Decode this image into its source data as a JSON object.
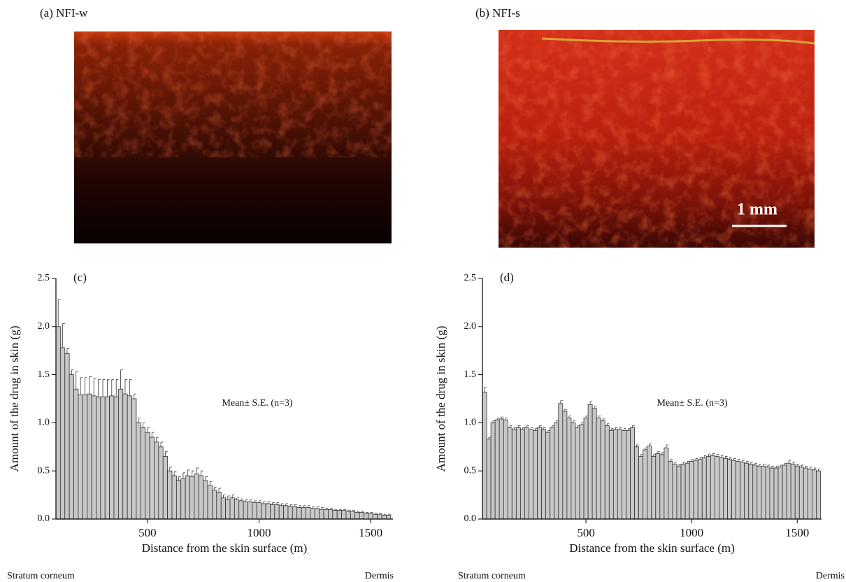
{
  "panels": [
    {
      "label": "(a) NFI-w"
    },
    {
      "label": "(b) NFI-s",
      "scale_bar": "1 mm"
    }
  ],
  "chart_data": [
    {
      "type": "bar",
      "panel_label": "(c)",
      "annotation": "Mean± S.E. (n=3)",
      "y_label": "Amount of the drug  in skin (g)",
      "x_label": "Distance from the skin surface (m)",
      "footer_labels": [
        "Stratum corneum",
        "Dermis"
      ],
      "color": "#c8c8c8",
      "xlim": [
        90,
        1600
      ],
      "xticks": [
        500,
        1000,
        1500
      ],
      "ylim": [
        0,
        2.5
      ],
      "yticks": [
        {
          "value": 0,
          "label": "0.0"
        },
        0.5,
        {
          "value": 1,
          "label": "1.0"
        },
        1.5,
        {
          "value": 2,
          "label": "2.0"
        },
        2.5
      ],
      "x": [
        100,
        120,
        140,
        160,
        180,
        200,
        220,
        240,
        260,
        280,
        300,
        320,
        340,
        360,
        380,
        400,
        420,
        440,
        460,
        480,
        500,
        520,
        540,
        560,
        580,
        600,
        620,
        640,
        660,
        680,
        700,
        720,
        740,
        760,
        780,
        800,
        820,
        840,
        860,
        880,
        900,
        920,
        940,
        960,
        980,
        1000,
        1020,
        1040,
        1060,
        1080,
        1100,
        1120,
        1140,
        1160,
        1180,
        1200,
        1220,
        1240,
        1260,
        1280,
        1300,
        1320,
        1340,
        1360,
        1380,
        1400,
        1420,
        1440,
        1460,
        1480,
        1500,
        1520,
        1540,
        1560,
        1580
      ],
      "values": [
        2.0,
        1.78,
        1.72,
        1.5,
        1.35,
        1.29,
        1.29,
        1.3,
        1.28,
        1.27,
        1.27,
        1.27,
        1.28,
        1.27,
        1.35,
        1.3,
        1.28,
        1.25,
        1.0,
        0.95,
        0.9,
        0.85,
        0.8,
        0.75,
        0.65,
        0.5,
        0.45,
        0.4,
        0.42,
        0.45,
        0.44,
        0.47,
        0.45,
        0.4,
        0.35,
        0.3,
        0.28,
        0.22,
        0.2,
        0.22,
        0.2,
        0.19,
        0.18,
        0.18,
        0.17,
        0.17,
        0.16,
        0.16,
        0.15,
        0.15,
        0.14,
        0.14,
        0.13,
        0.13,
        0.12,
        0.12,
        0.12,
        0.11,
        0.11,
        0.1,
        0.1,
        0.1,
        0.09,
        0.09,
        0.09,
        0.08,
        0.08,
        0.07,
        0.07,
        0.06,
        0.06,
        0.05,
        0.05,
        0.04,
        0.04
      ],
      "errors": [
        0.28,
        0.25,
        0.05,
        0.05,
        0.18,
        0.18,
        0.18,
        0.18,
        0.18,
        0.18,
        0.18,
        0.18,
        0.17,
        0.18,
        0.2,
        0.15,
        0.17,
        0.05,
        0.05,
        0.05,
        0.05,
        0.05,
        0.05,
        0.05,
        0.05,
        0.04,
        0.04,
        0.04,
        0.06,
        0.06,
        0.06,
        0.06,
        0.05,
        0.04,
        0.04,
        0.03,
        0.04,
        0.03,
        0.04,
        0.03,
        0.02,
        0.02,
        0.02,
        0.02,
        0.02,
        0.02,
        0.02,
        0.02,
        0.02,
        0.02,
        0.02,
        0.02,
        0.02,
        0.02,
        0.02,
        0.02,
        0.02,
        0.02,
        0.02,
        0.02,
        0.01,
        0.01,
        0.01,
        0.01,
        0.01,
        0.01,
        0.01,
        0.01,
        0.01,
        0.01,
        0.01,
        0.01,
        0.01,
        0.01,
        0.01
      ]
    },
    {
      "type": "bar",
      "panel_label": "(d)",
      "annotation": "Mean± S.E. (n=3)",
      "y_label": "Amount of the drug  in skin (g)",
      "x_label": "Distance from the skin surface (m)",
      "footer_labels": [
        "Stratum corneum",
        "Dermis"
      ],
      "color": "#c8c8c8",
      "xlim": [
        10,
        1615
      ],
      "xticks": [
        500,
        1000,
        1500
      ],
      "ylim": [
        0,
        2.5
      ],
      "yticks": [
        {
          "value": 0,
          "label": "0.0"
        },
        0.5,
        {
          "value": 1,
          "label": "1.0"
        },
        1.5,
        {
          "value": 2,
          "label": "2.0"
        },
        2.5
      ],
      "x": [
        20,
        40,
        60,
        80,
        100,
        120,
        140,
        160,
        180,
        200,
        220,
        240,
        260,
        280,
        300,
        320,
        340,
        360,
        380,
        400,
        420,
        440,
        460,
        480,
        500,
        520,
        540,
        560,
        580,
        600,
        620,
        640,
        660,
        680,
        700,
        720,
        740,
        760,
        780,
        800,
        820,
        840,
        860,
        880,
        900,
        920,
        940,
        960,
        980,
        1000,
        1020,
        1040,
        1060,
        1080,
        1100,
        1120,
        1140,
        1160,
        1180,
        1200,
        1220,
        1240,
        1260,
        1280,
        1300,
        1320,
        1340,
        1360,
        1380,
        1400,
        1420,
        1440,
        1460,
        1480,
        1500,
        1520,
        1540,
        1560,
        1580,
        1600
      ],
      "values": [
        1.32,
        0.83,
        1.0,
        1.03,
        1.04,
        1.03,
        0.95,
        0.93,
        0.95,
        0.93,
        0.95,
        0.93,
        0.92,
        0.95,
        0.93,
        0.9,
        0.95,
        1.0,
        1.2,
        1.12,
        1.05,
        1.0,
        0.95,
        0.98,
        1.05,
        1.19,
        1.15,
        1.05,
        1.02,
        0.97,
        0.92,
        0.93,
        0.93,
        0.92,
        0.92,
        0.95,
        0.75,
        0.65,
        0.72,
        0.76,
        0.65,
        0.68,
        0.67,
        0.74,
        0.6,
        0.57,
        0.55,
        0.57,
        0.58,
        0.6,
        0.61,
        0.62,
        0.64,
        0.65,
        0.66,
        0.65,
        0.64,
        0.63,
        0.62,
        0.61,
        0.6,
        0.59,
        0.58,
        0.57,
        0.56,
        0.55,
        0.55,
        0.54,
        0.53,
        0.53,
        0.54,
        0.56,
        0.58,
        0.57,
        0.55,
        0.54,
        0.53,
        0.52,
        0.51,
        0.5
      ],
      "errors": [
        0.05,
        0.02,
        0.02,
        0.02,
        0.02,
        0.02,
        0.02,
        0.02,
        0.02,
        0.02,
        0.02,
        0.02,
        0.02,
        0.02,
        0.02,
        0.02,
        0.02,
        0.02,
        0.03,
        0.02,
        0.02,
        0.02,
        0.02,
        0.02,
        0.02,
        0.03,
        0.02,
        0.02,
        0.02,
        0.02,
        0.02,
        0.02,
        0.02,
        0.02,
        0.02,
        0.02,
        0.02,
        0.02,
        0.02,
        0.02,
        0.02,
        0.02,
        0.02,
        0.03,
        0.02,
        0.02,
        0.02,
        0.02,
        0.02,
        0.02,
        0.02,
        0.02,
        0.02,
        0.02,
        0.02,
        0.02,
        0.02,
        0.02,
        0.02,
        0.02,
        0.02,
        0.02,
        0.02,
        0.02,
        0.02,
        0.02,
        0.02,
        0.02,
        0.02,
        0.02,
        0.02,
        0.02,
        0.03,
        0.02,
        0.02,
        0.02,
        0.02,
        0.02,
        0.02,
        0.02
      ]
    }
  ]
}
